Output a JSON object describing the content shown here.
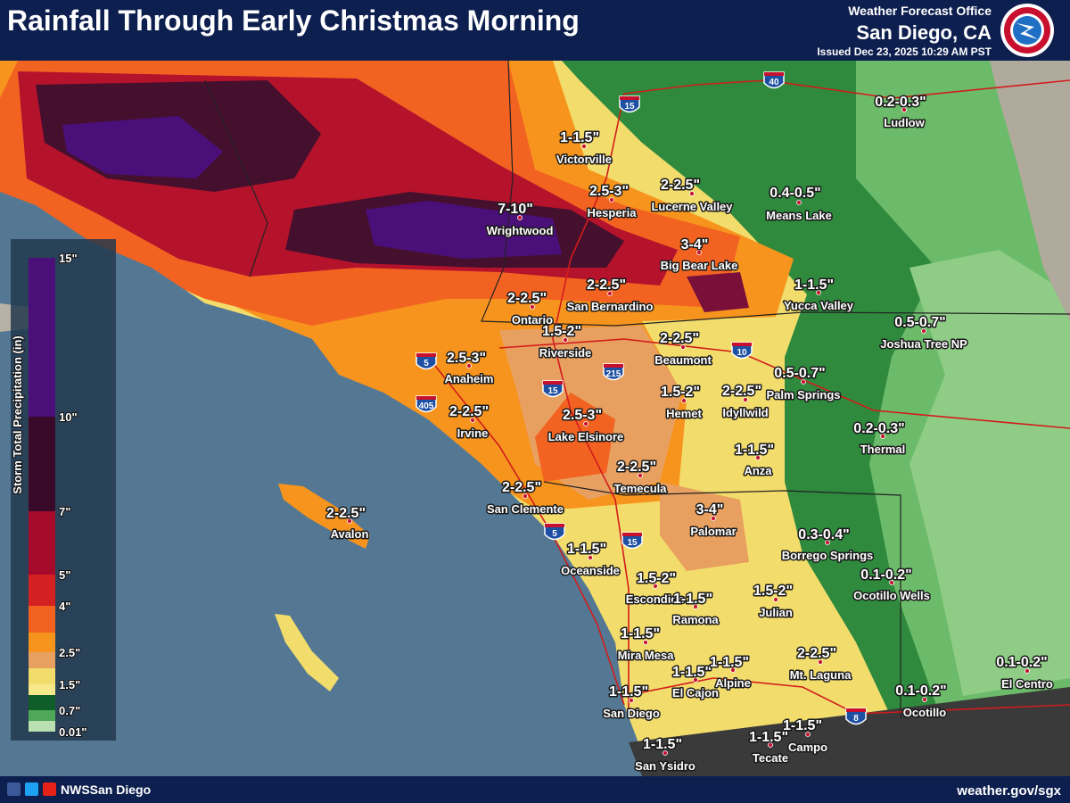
{
  "header": {
    "title": "Rainfall Through Early Christmas Morning",
    "office": "Weather Forecast Office",
    "location": "San Diego, CA",
    "issued": "Issued Dec 23, 2025 10:29 AM PST"
  },
  "legend": {
    "title": "Storm Total Precipitation (in)",
    "labels": [
      "15\"",
      "10\"",
      "7\"",
      "5\"",
      "4\"",
      "2.5\"",
      "1.5\"",
      "0.7\"",
      "0.01\""
    ]
  },
  "places": [
    {
      "amount": "1-1.5\"",
      "name": "Victorville"
    },
    {
      "amount": "2.5-3\"",
      "name": "Hesperia"
    },
    {
      "amount": "2-2.5\"",
      "name": "Lucerne Valley"
    },
    {
      "amount": "7-10\"",
      "name": "Wrightwood"
    },
    {
      "amount": "0.4-0.5\"",
      "name": "Means Lake"
    },
    {
      "amount": "0.2-0.3\"",
      "name": "Ludlow"
    },
    {
      "amount": "3-4\"",
      "name": "Big Bear Lake"
    },
    {
      "amount": "2-2.5\"",
      "name": "Ontario"
    },
    {
      "amount": "2-2.5\"",
      "name": "San Bernardino"
    },
    {
      "amount": "1-1.5\"",
      "name": "Yucca Valley"
    },
    {
      "amount": "0.5-0.7\"",
      "name": "Joshua Tree NP"
    },
    {
      "amount": "1.5-2\"",
      "name": "Riverside"
    },
    {
      "amount": "2-2.5\"",
      "name": "Beaumont"
    },
    {
      "amount": "2.5-3\"",
      "name": "Anaheim"
    },
    {
      "amount": "0.5-0.7\"",
      "name": "Palm Springs"
    },
    {
      "amount": "1.5-2\"",
      "name": "Hemet"
    },
    {
      "amount": "2-2.5\"",
      "name": "Idyllwild"
    },
    {
      "amount": "2-2.5\"",
      "name": "Irvine"
    },
    {
      "amount": "2.5-3\"",
      "name": "Lake Elsinore"
    },
    {
      "amount": "0.2-0.3\"",
      "name": "Thermal"
    },
    {
      "amount": "1-1.5\"",
      "name": "Anza"
    },
    {
      "amount": "2-2.5\"",
      "name": "Temecula"
    },
    {
      "amount": "2-2.5\"",
      "name": "San Clemente"
    },
    {
      "amount": "2-2.5\"",
      "name": "Avalon"
    },
    {
      "amount": "3-4\"",
      "name": "Palomar"
    },
    {
      "amount": "0.3-0.4\"",
      "name": "Borrego Springs"
    },
    {
      "amount": "1-1.5\"",
      "name": "Oceanside"
    },
    {
      "amount": "0.1-0.2\"",
      "name": "Ocotillo Wells"
    },
    {
      "amount": "1.5-2\"",
      "name": "Escondido"
    },
    {
      "amount": "1-1.5\"",
      "name": "Ramona"
    },
    {
      "amount": "1.5-2\"",
      "name": "Julian"
    },
    {
      "amount": "1-1.5\"",
      "name": "Mira Mesa"
    },
    {
      "amount": "2-2.5\"",
      "name": "Mt. Laguna"
    },
    {
      "amount": "1-1.5\"",
      "name": "El Cajon"
    },
    {
      "amount": "1-1.5\"",
      "name": "Alpine"
    },
    {
      "amount": "0.1-0.2\"",
      "name": "El Centro"
    },
    {
      "amount": "1-1.5\"",
      "name": "San Diego"
    },
    {
      "amount": "0.1-0.2\"",
      "name": "Ocotillo"
    },
    {
      "amount": "1-1.5\"",
      "name": "Campo"
    },
    {
      "amount": "1-1.5\"",
      "name": "Tecate"
    },
    {
      "amount": "1-1.5\"",
      "name": "San Ysidro"
    }
  ],
  "highways": [
    "15",
    "40",
    "5",
    "405",
    "15",
    "215",
    "10",
    "5",
    "15",
    "8"
  ],
  "footer": {
    "social": "NWSSan Diego",
    "website": "weather.gov/sgx"
  }
}
